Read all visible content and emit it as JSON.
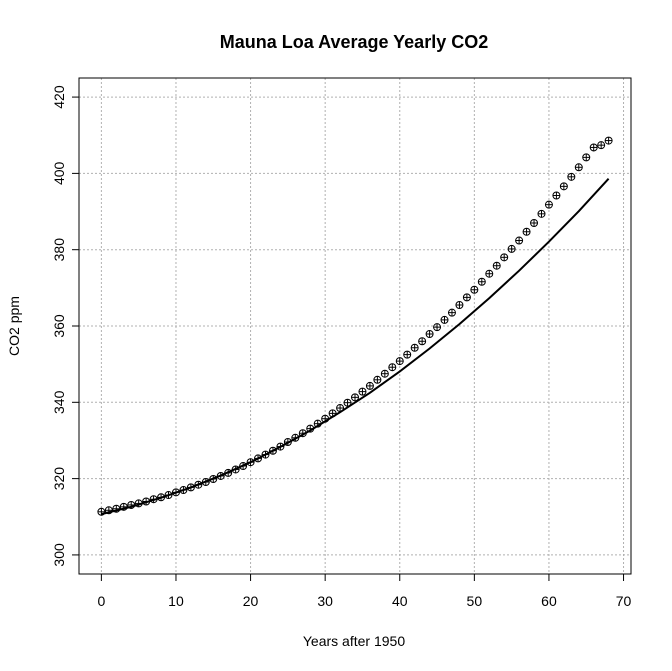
{
  "chart_data": {
    "type": "scatter",
    "title": "Mauna Loa Average Yearly CO2",
    "xlabel": "Years after 1950",
    "ylabel": "CO2 ppm",
    "xlim": [
      -3,
      71
    ],
    "ylim": [
      295,
      425
    ],
    "xticks": [
      "0",
      "10",
      "20",
      "30",
      "40",
      "50",
      "60",
      "70"
    ],
    "yticks": [
      "300",
      "320",
      "340",
      "360",
      "380",
      "400",
      "420"
    ],
    "grid": true,
    "series": [
      {
        "marker": "circle-plus",
        "x": [
          0,
          1,
          2,
          3,
          4,
          5,
          6,
          7,
          8,
          9,
          10,
          11,
          12,
          13,
          14,
          15,
          16,
          17,
          18,
          19,
          20,
          21,
          22,
          23,
          24,
          25,
          26,
          27,
          28,
          29,
          30,
          31,
          32,
          33,
          34,
          35,
          36,
          37,
          38,
          39,
          40,
          41,
          42,
          43,
          44,
          45,
          46,
          47,
          48,
          49,
          50,
          51,
          52,
          53,
          54,
          55,
          56,
          57,
          58,
          59,
          60,
          61,
          62,
          63,
          64,
          65,
          66,
          67,
          68
        ],
        "values": [
          311.3,
          311.7,
          312.1,
          312.6,
          313.1,
          313.5,
          314.0,
          314.6,
          315.1,
          315.7,
          316.4,
          317.0,
          317.7,
          318.4,
          319.1,
          319.9,
          320.7,
          321.5,
          322.4,
          323.3,
          324.3,
          325.3,
          326.3,
          327.3,
          328.4,
          329.6,
          330.7,
          331.9,
          333.1,
          334.4,
          335.7,
          337.1,
          338.5,
          339.9,
          341.3,
          342.8,
          344.3,
          345.9,
          347.5,
          349.2,
          350.8,
          352.5,
          354.3,
          356.0,
          357.9,
          359.7,
          361.6,
          363.5,
          365.5,
          367.5,
          369.5,
          371.6,
          373.7,
          375.8,
          378.0,
          380.2,
          382.4,
          384.7,
          387.0,
          389.4,
          391.8,
          394.2,
          396.6,
          399.1,
          401.6,
          404.2,
          406.8,
          407.4,
          408.6
        ]
      },
      {
        "type": "line",
        "x": [
          0,
          4,
          8,
          12,
          16,
          20,
          24,
          28,
          32,
          36,
          40,
          44,
          48,
          52,
          56,
          60,
          64,
          68
        ],
        "values": [
          310.7,
          312.6,
          315.0,
          317.7,
          320.8,
          324.3,
          328.3,
          332.6,
          337.4,
          342.5,
          348.1,
          354.1,
          360.5,
          367.3,
          374.5,
          382.1,
          390.1,
          398.6
        ]
      }
    ]
  }
}
